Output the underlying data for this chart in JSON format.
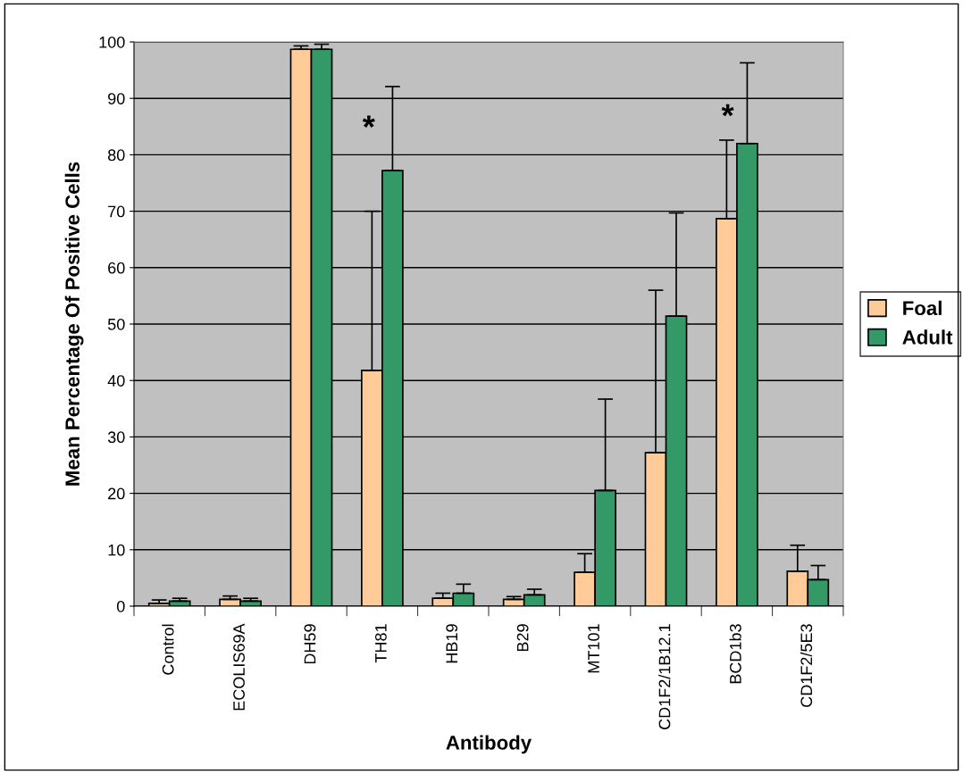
{
  "chart_data": {
    "type": "bar",
    "xlabel": "Antibody",
    "ylabel": "Mean Percentage Of Positive Cells",
    "categories": [
      "Control",
      "ECOLIS69A",
      "DH59",
      "TH81",
      "HB19",
      "B29",
      "MT101",
      "CD1F2/1B12.1",
      "BCD1b3",
      "CD1F2/5E3"
    ],
    "series": [
      {
        "name": "Foal",
        "color": "#ffcc99",
        "values": [
          0.5,
          1.2,
          98.7,
          41.8,
          1.4,
          1.2,
          6.0,
          27.2,
          68.7,
          6.2
        ],
        "errors": [
          [
            0.5,
            1.1
          ],
          [
            1.2,
            1.8
          ],
          [
            98.7,
            99.3
          ],
          [
            41.8,
            70.0
          ],
          [
            1.4,
            2.3
          ],
          [
            1.2,
            1.7
          ],
          [
            6.0,
            9.3
          ],
          [
            27.2,
            56.0
          ],
          [
            68.7,
            82.6
          ],
          [
            6.2,
            10.8
          ]
        ]
      },
      {
        "name": "Adult",
        "color": "#339966",
        "values": [
          0.9,
          0.9,
          98.7,
          77.2,
          2.3,
          2.0,
          20.5,
          51.4,
          82.0,
          4.7
        ],
        "errors": [
          [
            0.9,
            1.4
          ],
          [
            0.9,
            1.4
          ],
          [
            98.7,
            99.6
          ],
          [
            77.2,
            92.1
          ],
          [
            2.3,
            3.9
          ],
          [
            2.0,
            3.0
          ],
          [
            20.5,
            36.7
          ],
          [
            51.4,
            69.7
          ],
          [
            82.0,
            96.3
          ],
          [
            4.7,
            7.2
          ]
        ]
      }
    ],
    "ylim": [
      0,
      100
    ],
    "yticks": [
      0,
      10,
      20,
      30,
      40,
      50,
      60,
      70,
      80,
      90,
      100
    ],
    "grid": "y",
    "legend": "right",
    "annotations": [
      "*",
      "*"
    ]
  }
}
